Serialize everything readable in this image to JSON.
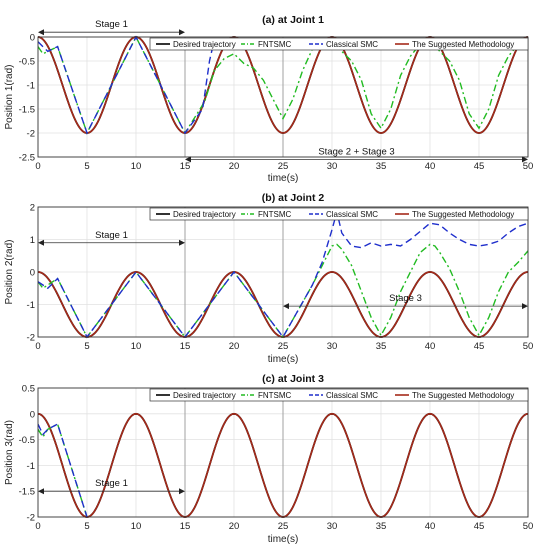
{
  "figure_panels": [
    {
      "title": "(a) at Joint 1",
      "xlabel": "time(s)",
      "ylabel": "Position 1(rad)",
      "xlim": [
        0,
        50
      ],
      "ylim": [
        -2.5,
        0
      ],
      "xticks": [
        0,
        5,
        10,
        15,
        20,
        25,
        30,
        35,
        40,
        45,
        50
      ],
      "yticks": [
        0,
        -0.5,
        -1,
        -1.5,
        -2,
        -2.5
      ],
      "ytick_labels": [
        "0",
        "-0.5",
        "-1",
        "-1.5",
        "-2",
        "-2.5"
      ],
      "annotations": [
        {
          "text": "Stage 1",
          "x_from": 0,
          "x_to": 15,
          "y": 0.1
        },
        {
          "text": "Stage 2 + Stage 3",
          "x_from": 15,
          "x_to": 50,
          "y": -2.55
        }
      ],
      "vlines": [
        15,
        25
      ]
    },
    {
      "title": "(b) at Joint 2",
      "xlabel": "time(s)",
      "ylabel": "Position 2(rad)",
      "xlim": [
        0,
        50
      ],
      "ylim": [
        -2,
        2
      ],
      "xticks": [
        0,
        5,
        10,
        15,
        20,
        25,
        30,
        35,
        40,
        45,
        50
      ],
      "yticks": [
        2,
        1,
        0,
        -1,
        -2
      ],
      "ytick_labels": [
        "2",
        "1",
        "0",
        "-1",
        "-2"
      ],
      "annotations": [
        {
          "text": "Stage 1",
          "x_from": 0,
          "x_to": 15,
          "y": 0.9
        },
        {
          "text": "Stage 3",
          "x_from": 25,
          "x_to": 50,
          "y": -1.05
        }
      ],
      "vlines": [
        15,
        25
      ]
    },
    {
      "title": "(c) at Joint 3",
      "xlabel": "time(s)",
      "ylabel": "Position 3(rad)",
      "xlim": [
        0,
        50
      ],
      "ylim": [
        -2,
        0.5
      ],
      "xticks": [
        0,
        5,
        10,
        15,
        20,
        25,
        30,
        35,
        40,
        45,
        50
      ],
      "yticks": [
        0.5,
        0,
        -0.5,
        -1,
        -1.5,
        -2
      ],
      "ytick_labels": [
        "0.5",
        "0",
        "-0.5",
        "-1",
        "-1.5",
        "-2"
      ],
      "annotations": [
        {
          "text": "Stage 1",
          "x_from": 0,
          "x_to": 15,
          "y": -1.5
        }
      ],
      "vlines": [
        15,
        25
      ]
    }
  ],
  "legend": [
    {
      "name": "Desired trajectory",
      "color": "#000000",
      "dash": "solid"
    },
    {
      "name": "FNTSMC",
      "color": "#22bb22",
      "dash": "dashdot"
    },
    {
      "name": "Classical SMC",
      "color": "#1f2fcc",
      "dash": "dashed"
    },
    {
      "name": "The Suggested Methodology",
      "color": "#a52a1a",
      "dash": "solid"
    }
  ],
  "chart_data": [
    {
      "type": "line",
      "title": "(a) at Joint 1",
      "xlabel": "time(s)",
      "ylabel": "Position 1(rad)",
      "xlim": [
        0,
        50
      ],
      "ylim": [
        -2.5,
        0
      ],
      "grid": true,
      "legend_position": "top",
      "series": [
        {
          "name": "Desired trajectory",
          "function": "-1 + cos(2*pi*t/10)",
          "x": [
            0,
            2.5,
            5,
            7.5,
            10,
            12.5,
            15,
            17.5,
            20,
            22.5,
            25,
            27.5,
            30,
            32.5,
            35,
            37.5,
            40,
            42.5,
            45,
            47.5,
            50
          ],
          "y": [
            0,
            -1,
            -2,
            -1,
            0,
            -1,
            -2,
            -1,
            0,
            -1,
            -2,
            -1,
            0,
            -1,
            -2,
            -1,
            0,
            -1,
            -2,
            -1,
            0
          ]
        },
        {
          "name": "FNTSMC",
          "x": [
            0,
            0.5,
            1,
            2,
            5,
            10,
            15,
            17,
            18,
            19,
            20,
            21,
            22,
            23,
            24,
            25,
            26,
            27,
            28,
            29,
            30,
            31,
            32,
            33,
            34,
            35,
            36,
            37,
            38,
            39,
            40,
            41,
            42,
            43,
            44,
            45,
            46,
            47,
            48,
            49,
            50
          ],
          "y": [
            -0.2,
            -0.35,
            -0.3,
            -0.2,
            -2,
            0,
            -2,
            -1.35,
            -0.7,
            -0.45,
            -0.35,
            -0.55,
            -0.65,
            -0.9,
            -1.3,
            -1.7,
            -1.3,
            -0.7,
            -0.25,
            -0.1,
            -0.05,
            -0.3,
            -0.5,
            -0.9,
            -1.6,
            -1.9,
            -1.5,
            -0.8,
            -0.4,
            -0.15,
            -0.05,
            -0.3,
            -0.5,
            -0.9,
            -1.6,
            -1.9,
            -1.5,
            -0.8,
            -0.4,
            -0.15,
            -0.05
          ]
        },
        {
          "name": "Classical SMC",
          "x": [
            0,
            1,
            2,
            5,
            10,
            15,
            16.8,
            17.5,
            18,
            19,
            20,
            21,
            22,
            23,
            24,
            25,
            26,
            27,
            28,
            29,
            30
          ],
          "y": [
            -0.1,
            -0.3,
            -0.2,
            -2,
            0,
            -2,
            -1.5,
            -0.5,
            -0.05,
            -0.2,
            -0.05,
            -0.2,
            -0.15,
            -0.2,
            -0.15,
            -0.12,
            -0.15,
            -0.15,
            -0.12,
            -0.12,
            0
          ]
        },
        {
          "name": "The Suggested Methodology",
          "function": "-1 + cos(2*pi*t/10)",
          "x": [
            0,
            2.5,
            5,
            7.5,
            10,
            12.5,
            15,
            17.5,
            20,
            22.5,
            25,
            27.5,
            30,
            32.5,
            35,
            37.5,
            40,
            42.5,
            45,
            47.5,
            50
          ],
          "y": [
            0,
            -1,
            -2,
            -1,
            0,
            -1,
            -2,
            -1,
            0,
            -1,
            -2,
            -1,
            0,
            -1,
            -2,
            -1,
            0,
            -1,
            -2,
            -1,
            0
          ]
        }
      ]
    },
    {
      "type": "line",
      "title": "(b) at Joint 2",
      "xlabel": "time(s)",
      "ylabel": "Position 2(rad)",
      "xlim": [
        0,
        50
      ],
      "ylim": [
        -2,
        2
      ],
      "grid": true,
      "legend_position": "top",
      "series": [
        {
          "name": "Desired trajectory",
          "function": "-1 + cos(2*pi*t/10)",
          "x": [
            0,
            2.5,
            5,
            7.5,
            10,
            12.5,
            15,
            17.5,
            20,
            22.5,
            25,
            27.5,
            30,
            32.5,
            35,
            37.5,
            40,
            42.5,
            45,
            47.5,
            50
          ],
          "y": [
            0,
            -1,
            -2,
            -1,
            0,
            -1,
            -2,
            -1,
            0,
            -1,
            -2,
            -1,
            0,
            -1,
            -2,
            -1,
            0,
            -1,
            -2,
            -1,
            0
          ]
        },
        {
          "name": "FNTSMC",
          "x": [
            0,
            0.5,
            1,
            2,
            5,
            10,
            15,
            20,
            25,
            28,
            29,
            30,
            30.5,
            31,
            32,
            33,
            34,
            35,
            36,
            37,
            38,
            39,
            40,
            40.5,
            41,
            42,
            43,
            44,
            45,
            46,
            47,
            48,
            49,
            50
          ],
          "y": [
            -0.3,
            -0.5,
            -0.4,
            -0.2,
            -2,
            0,
            -2,
            0,
            -2,
            -0.4,
            0.2,
            0.8,
            0.85,
            0.7,
            0.2,
            -0.6,
            -1.4,
            -1.95,
            -1.4,
            -0.6,
            0,
            0.6,
            0.85,
            0.8,
            0.6,
            0.1,
            -0.6,
            -1.4,
            -1.95,
            -1.4,
            -0.6,
            0,
            0.3,
            0.65
          ]
        },
        {
          "name": "Classical SMC",
          "x": [
            0,
            1,
            2,
            5,
            10,
            15,
            20,
            25,
            28,
            29,
            30,
            30.5,
            31,
            32,
            33,
            34,
            35,
            36,
            37,
            38,
            39,
            40,
            41,
            42,
            43,
            44,
            45,
            46,
            47,
            48,
            49,
            50
          ],
          "y": [
            -0.3,
            -0.5,
            -0.2,
            -2,
            0,
            -2,
            0,
            -2,
            -0.4,
            0.3,
            1.3,
            1.85,
            1.2,
            0.8,
            0.75,
            0.9,
            0.8,
            0.85,
            0.8,
            1.0,
            1.25,
            1.5,
            1.45,
            1.2,
            1.0,
            0.85,
            0.8,
            0.85,
            0.95,
            1.2,
            1.4,
            1.5
          ]
        },
        {
          "name": "The Suggested Methodology",
          "function": "-1 + cos(2*pi*t/10)",
          "x": [
            0,
            2.5,
            5,
            7.5,
            10,
            12.5,
            15,
            17.5,
            20,
            22.5,
            25,
            27.5,
            30,
            32.5,
            35,
            37.5,
            40,
            42.5,
            45,
            47.5,
            50
          ],
          "y": [
            0,
            -1,
            -2,
            -1,
            0,
            -1,
            -2,
            -1,
            0,
            -1,
            -2,
            -1,
            0,
            -1,
            -2,
            -1,
            0,
            -1,
            -2,
            -1,
            0
          ]
        }
      ]
    },
    {
      "type": "line",
      "title": "(c) at Joint 3",
      "xlabel": "time(s)",
      "ylabel": "Position 3(rad)",
      "xlim": [
        0,
        50
      ],
      "ylim": [
        -2,
        0.5
      ],
      "grid": true,
      "legend_position": "top",
      "series": [
        {
          "name": "Desired trajectory",
          "function": "-1 + cos(2*pi*t/10)",
          "x": [
            0,
            2.5,
            5,
            7.5,
            10,
            12.5,
            15,
            17.5,
            20,
            22.5,
            25,
            27.5,
            30,
            32.5,
            35,
            37.5,
            40,
            42.5,
            45,
            47.5,
            50
          ],
          "y": [
            0,
            -1,
            -2,
            -1,
            0,
            -1,
            -2,
            -1,
            0,
            -1,
            -2,
            -1,
            0,
            -1,
            -2,
            -1,
            0,
            -1,
            -2,
            -1,
            0
          ]
        },
        {
          "name": "FNTSMC",
          "x": [
            0,
            0.5,
            1,
            2,
            5
          ],
          "y": [
            -0.3,
            -0.45,
            -0.3,
            -0.2,
            -2
          ]
        },
        {
          "name": "Classical SMC",
          "x": [
            0,
            0.5,
            1,
            2,
            5
          ],
          "y": [
            -0.2,
            -0.4,
            -0.3,
            -0.2,
            -2
          ]
        },
        {
          "name": "The Suggested Methodology",
          "function": "-1 + cos(2*pi*t/10)",
          "x": [
            0,
            2.5,
            5,
            7.5,
            10,
            12.5,
            15,
            17.5,
            20,
            22.5,
            25,
            27.5,
            30,
            32.5,
            35,
            37.5,
            40,
            42.5,
            45,
            47.5,
            50
          ],
          "y": [
            0,
            -1,
            -2,
            -1,
            0,
            -1,
            -2,
            -1,
            0,
            -1,
            -2,
            -1,
            0,
            -1,
            -2,
            -1,
            0,
            -1,
            -2,
            -1,
            0
          ]
        }
      ]
    }
  ]
}
